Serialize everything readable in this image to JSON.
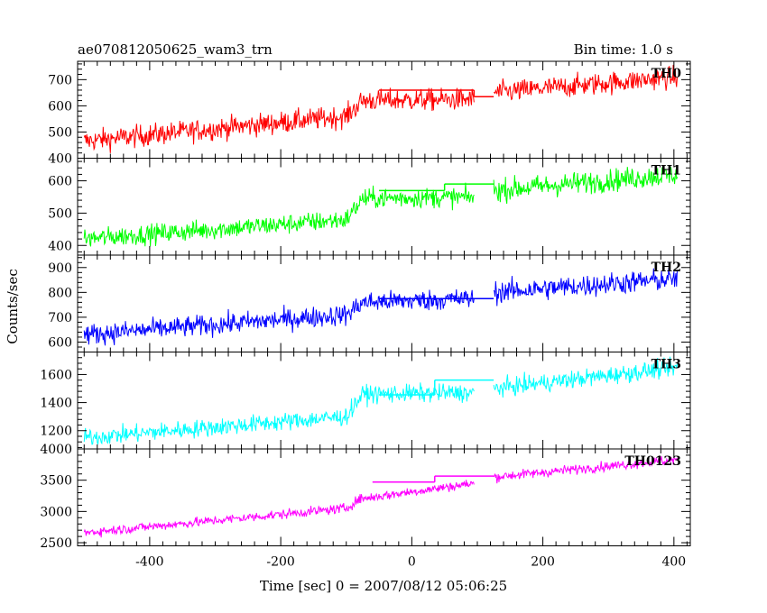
{
  "chart_data": {
    "type": "line",
    "title": "ae070812050625_wam3_trn",
    "subtitle": "Bin time: 1.0 s",
    "xlabel": "Time [sec] 0 = 2007/08/12 05:06:25",
    "ylabel": "Counts/sec",
    "xlim": [
      -510,
      425
    ],
    "xticks": [
      -400,
      -200,
      0,
      200,
      400
    ],
    "grid": false,
    "panels": [
      {
        "name": "TH0",
        "color": "#ff0000",
        "ylim": [
          400,
          770
        ],
        "yticks": [
          400,
          500,
          600,
          700
        ],
        "series": [
          {
            "x": [
              -500,
              -100,
              -75,
              95
            ],
            "y": [
              465,
              560,
              620,
              625
            ],
            "noise": 30
          },
          {
            "x": [
              125,
              405
            ],
            "y": [
              650,
              710
            ],
            "noise": 30
          }
        ],
        "steps": [
          {
            "x0": -50,
            "x1": 95,
            "y": 660
          },
          {
            "x0": 95,
            "x1": 125,
            "y": 635
          }
        ]
      },
      {
        "name": "TH1",
        "color": "#00ff00",
        "ylim": [
          370,
          670
        ],
        "yticks": [
          400,
          500,
          600
        ],
        "series": [
          {
            "x": [
              -500,
              -100,
              -75,
              95
            ],
            "y": [
              420,
              480,
              545,
              550
            ],
            "noise": 22
          },
          {
            "x": [
              125,
              405
            ],
            "y": [
              570,
              620
            ],
            "noise": 25
          }
        ],
        "steps": [
          {
            "x0": -50,
            "x1": 50,
            "y": 570
          },
          {
            "x0": 50,
            "x1": 125,
            "y": 590
          }
        ]
      },
      {
        "name": "TH2",
        "color": "#0000ff",
        "ylim": [
          560,
          950
        ],
        "yticks": [
          600,
          700,
          800,
          900
        ],
        "series": [
          {
            "x": [
              -500,
              -100,
              -75,
              95
            ],
            "y": [
              630,
              710,
              760,
              775
            ],
            "noise": 30
          },
          {
            "x": [
              125,
              405
            ],
            "y": [
              800,
              855
            ],
            "noise": 32
          }
        ],
        "steps": [
          {
            "x0": -50,
            "x1": 125,
            "y": 775
          }
        ]
      },
      {
        "name": "TH3",
        "color": "#00ffff",
        "ylim": [
          1070,
          1760
        ],
        "yticks": [
          1200,
          1400,
          1600
        ],
        "series": [
          {
            "x": [
              -500,
              -100,
              -75,
              95
            ],
            "y": [
              1150,
              1300,
              1460,
              1470
            ],
            "noise": 45
          },
          {
            "x": [
              125,
              405
            ],
            "y": [
              1500,
              1650
            ],
            "noise": 45
          }
        ],
        "steps": [
          {
            "x0": -50,
            "x1": 35,
            "y": 1455
          },
          {
            "x0": 35,
            "x1": 125,
            "y": 1560
          }
        ]
      },
      {
        "name": "TH0123",
        "color": "#ff00ff",
        "ylim": [
          2450,
          4000
        ],
        "yticks": [
          2500,
          3000,
          3500,
          4000
        ],
        "series": [
          {
            "x": [
              -500,
              -100,
              -80,
              95
            ],
            "y": [
              2660,
              3050,
              3200,
              3450
            ],
            "noise": 55
          },
          {
            "x": [
              125,
              405
            ],
            "y": [
              3550,
              3830
            ],
            "noise": 55
          }
        ],
        "steps": [
          {
            "x0": -60,
            "x1": 35,
            "y": 3470
          },
          {
            "x0": 35,
            "x1": 125,
            "y": 3565
          }
        ]
      }
    ]
  }
}
